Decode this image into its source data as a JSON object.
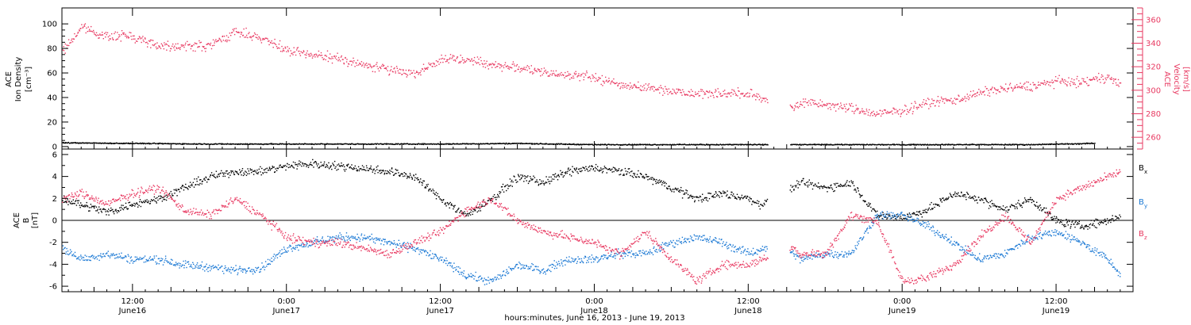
{
  "xlabel": "hours:minutes, June 16, 2013 - June 19, 2013",
  "x_ticks": [
    {
      "time": "12:00",
      "date": "June16"
    },
    {
      "time": "0:00",
      "date": "June17"
    },
    {
      "time": "12:00",
      "date": "June17"
    },
    {
      "time": "0:00",
      "date": "June18"
    },
    {
      "time": "12:00",
      "date": "June18"
    },
    {
      "time": "0:00",
      "date": "June19"
    },
    {
      "time": "12:00",
      "date": "June19"
    }
  ],
  "colors": {
    "density": "#000000",
    "velocity": "#e83a62",
    "bx": "#000000",
    "by": "#1a78d4",
    "bz": "#e83a62"
  },
  "top_panel": {
    "left_label": [
      "ACE",
      "Ion Density",
      "[cm⁻³]"
    ],
    "right_label": [
      "ACE",
      "Velocity",
      "[km/s]"
    ],
    "left_ticks": [
      "0",
      "20",
      "40",
      "60",
      "80",
      "100"
    ],
    "right_ticks": [
      "260",
      "280",
      "300",
      "320",
      "340",
      "360"
    ]
  },
  "bottom_panel": {
    "left_label": [
      "ACE",
      "B",
      "[nT]"
    ],
    "left_ticks": [
      "-6",
      "-4",
      "-2",
      "0",
      "2",
      "4",
      "6"
    ],
    "legend": [
      {
        "name": "B",
        "sub": "x",
        "color": "#000000"
      },
      {
        "name": "B",
        "sub": "y",
        "color": "#1a78d4"
      },
      {
        "name": "B",
        "sub": "z",
        "color": "#e83a62"
      }
    ]
  },
  "chart_data": [
    {
      "type": "scatter",
      "title": "",
      "x_unit": "hours since 2013-06-16 00:00 UT",
      "xlim": [
        6.5,
        90
      ],
      "gap": [
        61.5,
        63.2
      ],
      "series": [
        {
          "name": "Ion Density",
          "axis": "left",
          "ylim": [
            -2,
            113
          ],
          "x": [
            6.5,
            12,
            18,
            24,
            30,
            36,
            42,
            48,
            54,
            60,
            63.5,
            70,
            76,
            82,
            87
          ],
          "y": [
            3.5,
            3,
            2.5,
            2.5,
            2.5,
            2.5,
            3,
            2,
            2,
            2,
            2,
            2,
            2,
            2,
            3
          ]
        },
        {
          "name": "Velocity",
          "axis": "right",
          "ylim": [
            250,
            370
          ],
          "x": [
            6.5,
            8,
            10,
            12,
            14,
            16,
            18,
            20,
            22,
            24,
            26,
            28,
            30,
            32,
            34,
            36,
            38,
            40,
            42,
            44,
            46,
            48,
            50,
            52,
            54,
            56,
            58,
            60,
            61,
            63.5,
            64,
            66,
            68,
            70,
            72,
            74,
            76,
            78,
            80,
            82,
            84,
            86,
            88,
            89
          ],
          "y": [
            333,
            354,
            346,
            347,
            338,
            338,
            338,
            350,
            345,
            334,
            330,
            328,
            322,
            318,
            315,
            326,
            327,
            322,
            320,
            315,
            314,
            311,
            305,
            303,
            300,
            298,
            298,
            297,
            294,
            285,
            290,
            288,
            285,
            280,
            283,
            290,
            292,
            298,
            302,
            304,
            308,
            307,
            312,
            305
          ]
        }
      ]
    },
    {
      "type": "scatter",
      "title": "",
      "x_unit": "hours since 2013-06-16 00:00 UT",
      "xlim": [
        6.5,
        90
      ],
      "ylim": [
        -6.5,
        6.5
      ],
      "gap": [
        61.5,
        63.2
      ],
      "series": [
        {
          "name": "Bx",
          "x": [
            6.5,
            8,
            10,
            12,
            14,
            16,
            18,
            20,
            22,
            24,
            26,
            28,
            30,
            32,
            34,
            36,
            38,
            40,
            42,
            44,
            46,
            48,
            50,
            52,
            54,
            56,
            58,
            60,
            61,
            63.5,
            64,
            66,
            68,
            70,
            72,
            74,
            76,
            78,
            80,
            82,
            84,
            86,
            88,
            89
          ],
          "y": [
            2,
            1.5,
            0.8,
            1.5,
            2,
            3,
            4,
            4.5,
            4.5,
            5,
            5.2,
            5,
            4.8,
            4.5,
            4,
            2,
            0.5,
            2,
            4,
            3.5,
            4.5,
            4.8,
            4.5,
            4,
            3,
            2,
            2.5,
            2,
            1.5,
            3,
            3.5,
            3,
            3.5,
            0.5,
            0.3,
            1,
            2.5,
            2,
            1,
            2,
            0,
            -0.5,
            0,
            0.5
          ]
        },
        {
          "name": "By",
          "x": [
            6.5,
            8,
            10,
            12,
            14,
            16,
            18,
            20,
            22,
            24,
            26,
            28,
            30,
            32,
            34,
            36,
            38,
            40,
            42,
            44,
            46,
            48,
            50,
            52,
            54,
            56,
            58,
            60,
            61,
            63.5,
            64,
            66,
            68,
            70,
            72,
            74,
            76,
            78,
            80,
            82,
            84,
            86,
            88,
            89
          ],
          "y": [
            -2.5,
            -3.5,
            -3,
            -3.5,
            -3.5,
            -4,
            -4.2,
            -4.5,
            -4.3,
            -2.5,
            -2,
            -1.5,
            -1.5,
            -2,
            -2.5,
            -3.5,
            -5,
            -5.5,
            -4,
            -4.5,
            -3.5,
            -3.5,
            -3,
            -3,
            -2,
            -1.5,
            -2,
            -3,
            -2.5,
            -3,
            -3.5,
            -3,
            -3,
            0.5,
            0.5,
            -0.5,
            -2,
            -3.5,
            -3,
            -1.5,
            -1,
            -2,
            -3.5,
            -5
          ]
        },
        {
          "name": "Bz",
          "x": [
            6.5,
            8,
            10,
            12,
            14,
            16,
            18,
            20,
            22,
            24,
            26,
            28,
            30,
            32,
            34,
            36,
            38,
            40,
            42,
            44,
            46,
            48,
            50,
            52,
            54,
            56,
            58,
            60,
            61,
            63.5,
            64,
            66,
            68,
            70,
            72,
            74,
            76,
            78,
            80,
            82,
            84,
            86,
            88,
            89
          ],
          "y": [
            2,
            2.5,
            1.5,
            2.5,
            3,
            1,
            0.5,
            2,
            0.5,
            -1.5,
            -2,
            -2,
            -2.5,
            -3,
            -2,
            -1,
            1,
            2,
            0,
            -1,
            -1.5,
            -2,
            -3,
            -1,
            -3.5,
            -5.5,
            -4,
            -4,
            -3.5,
            -2.5,
            -3,
            -3,
            0.5,
            0,
            -5.5,
            -5.2,
            -4,
            -1.5,
            0.5,
            -2,
            2,
            3,
            4,
            4.5
          ]
        }
      ]
    }
  ]
}
